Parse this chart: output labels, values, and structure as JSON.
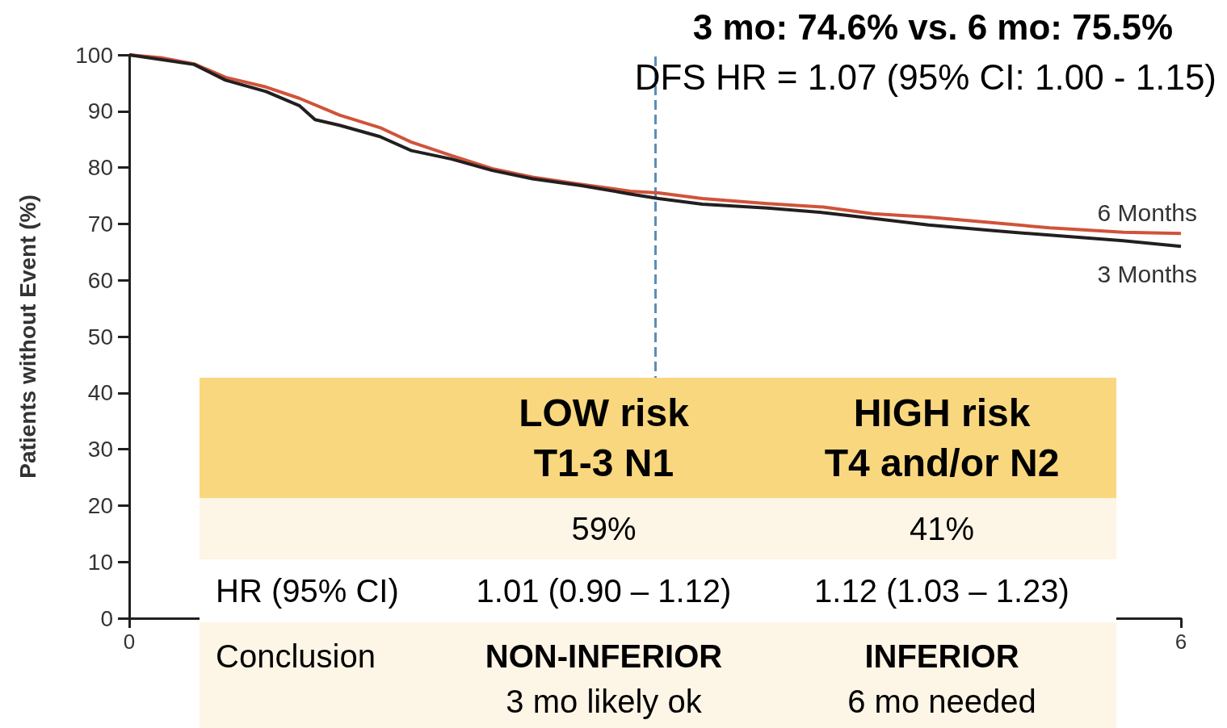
{
  "chart_data": {
    "type": "line",
    "title": "3 mo: 74.6% vs. 6 mo: 75.5%",
    "subtitle": "DFS HR = 1.07 (95% CI: 1.00 - 1.15)",
    "ylabel": "Patients without Event (%)",
    "xlim": [
      0,
      6
    ],
    "xticks": [
      0,
      6
    ],
    "ylim": [
      0,
      100
    ],
    "yticks": [
      0,
      10,
      20,
      30,
      40,
      50,
      60,
      70,
      80,
      90,
      100
    ],
    "grid": false,
    "marker": "none",
    "line_style": "solid",
    "series": [
      {
        "name": "6 Months",
        "color": "#d0533a",
        "x": [
          0,
          0.18,
          0.37,
          0.55,
          0.78,
          0.97,
          1.2,
          1.43,
          1.61,
          1.84,
          2.07,
          2.3,
          2.58,
          2.86,
          3.02,
          3.27,
          3.64,
          3.96,
          4.24,
          4.56,
          4.93,
          5.25,
          5.67,
          6
        ],
        "values": [
          100,
          99.5,
          98.4,
          96,
          94.3,
          92.3,
          89.3,
          87.1,
          84.5,
          82.1,
          79.8,
          78.3,
          77,
          75.8,
          75.5,
          74.5,
          73.6,
          73,
          71.8,
          71.2,
          70.2,
          69.3,
          68.5,
          68.3
        ]
      },
      {
        "name": "3 Months",
        "color": "#231f20",
        "x": [
          0,
          0.37,
          0.55,
          0.78,
          0.97,
          1.06,
          1.2,
          1.43,
          1.61,
          1.84,
          2.07,
          2.3,
          2.58,
          2.86,
          3.02,
          3.27,
          3.64,
          3.96,
          4.24,
          4.56,
          4.93,
          5.25,
          5.67,
          6
        ],
        "values": [
          100,
          98.3,
          95.5,
          93.5,
          91,
          88.5,
          87.5,
          85.5,
          83,
          81.5,
          79.5,
          78,
          76.8,
          75.3,
          74.5,
          73.5,
          72.8,
          72,
          71,
          69.8,
          68.8,
          68,
          67,
          66
        ]
      }
    ],
    "ref_lines": [
      {
        "axis": "x",
        "value": 3,
        "color": "#5b8db8",
        "line_style": "dashed"
      }
    ],
    "annotations": [
      "LOW risk",
      "T1-3 N1",
      "HIGH risk",
      "T4 and/or N2",
      "59%",
      "41%",
      "HR (95% CI)",
      "1.01 (0.90 – 1.12)",
      "1.12 (1.03 – 1.23)",
      "Conclusion",
      "NON-INFERIOR",
      "3 mo likely ok",
      "INFERIOR",
      "6 mo needed"
    ]
  }
}
